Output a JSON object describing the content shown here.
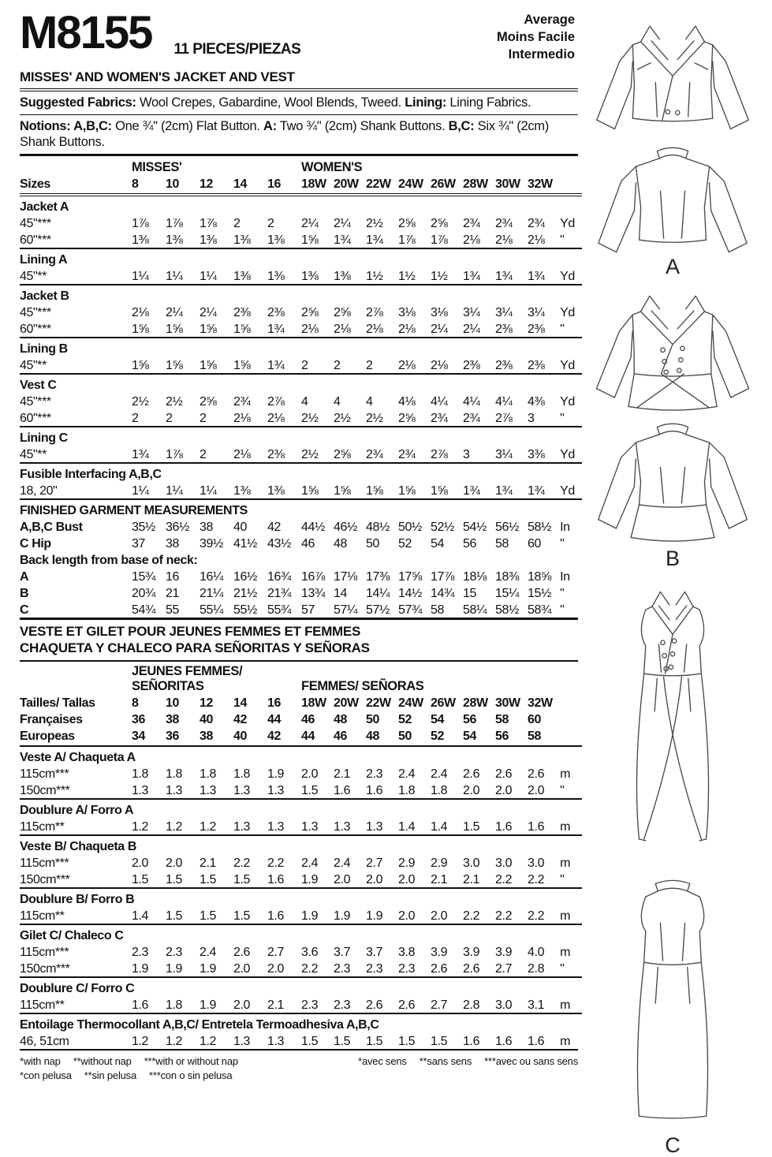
{
  "header": {
    "pattern_number": "M8155",
    "pieces_label": "11 PIECES/PIEZAS",
    "difficulty_lines": [
      "Average",
      "Moins Facile",
      "Intermedio"
    ],
    "title": "MISSES' AND WOMEN'S JACKET AND VEST",
    "fabrics_segments": [
      {
        "b": "Suggested Fabrics:"
      },
      {
        "t": " Wool Crepes, Gabardine, Wool Blends, Tweed. "
      },
      {
        "b": "Lining:"
      },
      {
        "t": " Lining Fabrics."
      }
    ],
    "notions_segments": [
      {
        "b": "Notions: A,B,C:"
      },
      {
        "t": " One ¾\" (2cm) Flat Button. "
      },
      {
        "b": "A:"
      },
      {
        "t": " Two ¾\" (2cm) Shank Buttons. "
      },
      {
        "b": "B,C:"
      },
      {
        "t": " Six ¾\" (2cm) Shank Buttons."
      }
    ]
  },
  "imperial_table": {
    "head_rule": "double",
    "group_headers": [
      {
        "lines": [
          "MISSES'"
        ],
        "span": 5
      },
      {
        "lines": [
          "WOMEN'S"
        ],
        "span": 8
      }
    ],
    "size_rows": [
      {
        "label": "Sizes",
        "values": [
          "8",
          "10",
          "12",
          "14",
          "16",
          "18W",
          "20W",
          "22W",
          "24W",
          "26W",
          "28W",
          "30W",
          "32W"
        ],
        "unit": ""
      }
    ],
    "sections": [
      {
        "title": "Jacket A",
        "rows": [
          {
            "label": "45\"***",
            "values": [
              "1⅞",
              "1⅞",
              "1⅞",
              "2",
              "2",
              "2¼",
              "2¼",
              "2½",
              "2⅝",
              "2⅝",
              "2¾",
              "2¾",
              "2¾"
            ],
            "unit": "Yd"
          },
          {
            "label": "60\"***",
            "values": [
              "1⅜",
              "1⅜",
              "1⅜",
              "1⅜",
              "1⅜",
              "1⅝",
              "1¾",
              "1¾",
              "1⅞",
              "1⅞",
              "2⅛",
              "2⅛",
              "2⅛"
            ],
            "unit": "\""
          }
        ]
      },
      {
        "title": "Lining A",
        "rows": [
          {
            "label": "45\"**",
            "values": [
              "1¼",
              "1¼",
              "1¼",
              "1⅜",
              "1⅜",
              "1⅜",
              "1⅜",
              "1½",
              "1½",
              "1½",
              "1¾",
              "1¾",
              "1¾"
            ],
            "unit": "Yd"
          }
        ]
      },
      {
        "title": "Jacket B",
        "rows": [
          {
            "label": "45\"***",
            "values": [
              "2⅛",
              "2¼",
              "2¼",
              "2⅜",
              "2⅜",
              "2⅝",
              "2⅝",
              "2⅞",
              "3⅛",
              "3⅛",
              "3¼",
              "3¼",
              "3¼"
            ],
            "unit": "Yd"
          },
          {
            "label": "60\"***",
            "values": [
              "1⅝",
              "1⅝",
              "1⅝",
              "1⅝",
              "1¾",
              "2⅛",
              "2⅛",
              "2⅛",
              "2⅛",
              "2¼",
              "2¼",
              "2⅜",
              "2⅜"
            ],
            "unit": "\""
          }
        ]
      },
      {
        "title": "Lining B",
        "rows": [
          {
            "label": "45\"**",
            "values": [
              "1⅝",
              "1⅝",
              "1⅝",
              "1⅝",
              "1¾",
              "2",
              "2",
              "2",
              "2⅛",
              "2⅛",
              "2⅜",
              "2⅜",
              "2⅜"
            ],
            "unit": "Yd"
          }
        ]
      },
      {
        "title": "Vest C",
        "rows": [
          {
            "label": "45\"***",
            "values": [
              "2½",
              "2½",
              "2⅝",
              "2¾",
              "2⅞",
              "4",
              "4",
              "4",
              "4⅛",
              "4¼",
              "4¼",
              "4¼",
              "4⅜"
            ],
            "unit": "Yd"
          },
          {
            "label": "60\"***",
            "values": [
              "2",
              "2",
              "2",
              "2⅛",
              "2⅛",
              "2½",
              "2½",
              "2½",
              "2⅝",
              "2¾",
              "2¾",
              "2⅞",
              "3"
            ],
            "unit": "\""
          }
        ]
      },
      {
        "title": "Lining C",
        "rows": [
          {
            "label": "45\"**",
            "values": [
              "1¾",
              "1⅞",
              "2",
              "2⅛",
              "2⅜",
              "2½",
              "2⅝",
              "2¾",
              "2¾",
              "2⅞",
              "3",
              "3¼",
              "3⅜"
            ],
            "unit": "Yd"
          }
        ]
      },
      {
        "title": "Fusible Interfacing A,B,C",
        "rows": [
          {
            "label": "18, 20\"",
            "values": [
              "1¼",
              "1¼",
              "1¼",
              "1⅜",
              "1⅜",
              "1⅝",
              "1⅝",
              "1⅝",
              "1⅝",
              "1⅝",
              "1¾",
              "1¾",
              "1¾"
            ],
            "unit": "Yd"
          }
        ]
      },
      {
        "title": "FINISHED GARMENT MEASUREMENTS",
        "rows": [
          {
            "label": "A,B,C Bust",
            "bold": 1,
            "values": [
              "35½",
              "36½",
              "38",
              "40",
              "42",
              "44½",
              "46½",
              "48½",
              "50½",
              "52½",
              "54½",
              "56½",
              "58½"
            ],
            "unit": "In"
          },
          {
            "label": "C Hip",
            "bold": 1,
            "values": [
              "37",
              "38",
              "39½",
              "41½",
              "43½",
              "46",
              "48",
              "50",
              "52",
              "54",
              "56",
              "58",
              "60"
            ],
            "unit": "\""
          },
          {
            "label": "Back length from base of neck:",
            "bold": 1,
            "values": [],
            "unit": ""
          },
          {
            "label": "A",
            "bold": 1,
            "values": [
              "15¾",
              "16",
              "16¼",
              "16½",
              "16¾",
              "16⅞",
              "17⅛",
              "17⅜",
              "17⅝",
              "17⅞",
              "18⅛",
              "18⅜",
              "18⅝"
            ],
            "unit": "In"
          },
          {
            "label": "B",
            "bold": 1,
            "values": [
              "20¾",
              "21",
              "21¼",
              "21½",
              "21¾",
              "13¾",
              "14",
              "14¼",
              "14½",
              "14¾",
              "15",
              "15¼",
              "15½"
            ],
            "unit": "\""
          },
          {
            "label": "C",
            "bold": 1,
            "values": [
              "54¾",
              "55",
              "55¼",
              "55½",
              "55¾",
              "57",
              "57¼",
              "57½",
              "57¾",
              "58",
              "58¼",
              "58½",
              "58¾"
            ],
            "unit": "\""
          }
        ]
      }
    ]
  },
  "metric_heading_lines": [
    "VESTE ET GILET POUR JEUNES FEMMES ET FEMMES",
    "CHAQUETA Y CHALECO PARA SEÑORITAS Y SEÑORAS"
  ],
  "metric_table": {
    "head_rule": "solid",
    "group_headers": [
      {
        "lines": [
          "JEUNES FEMMES/",
          "SEÑORITAS"
        ],
        "span": 5
      },
      {
        "lines": [
          "FEMMES/ SEÑORAS"
        ],
        "span": 8
      }
    ],
    "size_rows": [
      {
        "label": "Tailles/ Tallas",
        "values": [
          "8",
          "10",
          "12",
          "14",
          "16",
          "18W",
          "20W",
          "22W",
          "24W",
          "26W",
          "28W",
          "30W",
          "32W"
        ],
        "unit": ""
      },
      {
        "label": "Françaises",
        "values": [
          "36",
          "38",
          "40",
          "42",
          "44",
          "46",
          "48",
          "50",
          "52",
          "54",
          "56",
          "58",
          "60"
        ],
        "unit": ""
      },
      {
        "label": "Europeas",
        "values": [
          "34",
          "36",
          "38",
          "40",
          "42",
          "44",
          "46",
          "48",
          "50",
          "52",
          "54",
          "56",
          "58"
        ],
        "unit": ""
      }
    ],
    "sections": [
      {
        "title": "Veste A/ Chaqueta A",
        "rows": [
          {
            "label": "115cm***",
            "values": [
              "1.8",
              "1.8",
              "1.8",
              "1.8",
              "1.9",
              "2.0",
              "2.1",
              "2.3",
              "2.4",
              "2.4",
              "2.6",
              "2.6",
              "2.6"
            ],
            "unit": "m"
          },
          {
            "label": "150cm***",
            "values": [
              "1.3",
              "1.3",
              "1.3",
              "1.3",
              "1.3",
              "1.5",
              "1.6",
              "1.6",
              "1.8",
              "1.8",
              "2.0",
              "2.0",
              "2.0"
            ],
            "unit": "\""
          }
        ]
      },
      {
        "title": "Doublure A/ Forro A",
        "rows": [
          {
            "label": "115cm**",
            "values": [
              "1.2",
              "1.2",
              "1.2",
              "1.3",
              "1.3",
              "1.3",
              "1.3",
              "1.3",
              "1.4",
              "1.4",
              "1.5",
              "1.6",
              "1.6"
            ],
            "unit": "m"
          }
        ]
      },
      {
        "title": "Veste B/ Chaqueta B",
        "rows": [
          {
            "label": "115cm***",
            "values": [
              "2.0",
              "2.0",
              "2.1",
              "2.2",
              "2.2",
              "2.4",
              "2.4",
              "2.7",
              "2.9",
              "2.9",
              "3.0",
              "3.0",
              "3.0"
            ],
            "unit": "m"
          },
          {
            "label": "150cm***",
            "values": [
              "1.5",
              "1.5",
              "1.5",
              "1.5",
              "1.6",
              "1.9",
              "2.0",
              "2.0",
              "2.0",
              "2.1",
              "2.1",
              "2.2",
              "2.2"
            ],
            "unit": "\""
          }
        ]
      },
      {
        "title": "Doublure B/ Forro B",
        "rows": [
          {
            "label": "115cm**",
            "values": [
              "1.4",
              "1.5",
              "1.5",
              "1.5",
              "1.6",
              "1.9",
              "1.9",
              "1.9",
              "2.0",
              "2.0",
              "2.2",
              "2.2",
              "2.2"
            ],
            "unit": "m"
          }
        ]
      },
      {
        "title": "Gilet C/ Chaleco C",
        "rows": [
          {
            "label": "115cm***",
            "values": [
              "2.3",
              "2.3",
              "2.4",
              "2.6",
              "2.7",
              "3.6",
              "3.7",
              "3.7",
              "3.8",
              "3.9",
              "3.9",
              "3.9",
              "4.0"
            ],
            "unit": "m"
          },
          {
            "label": "150cm***",
            "values": [
              "1.9",
              "1.9",
              "1.9",
              "2.0",
              "2.0",
              "2.2",
              "2.3",
              "2.3",
              "2.3",
              "2.6",
              "2.6",
              "2.7",
              "2.8"
            ],
            "unit": "\""
          }
        ]
      },
      {
        "title": "Doublure C/ Forro C",
        "rows": [
          {
            "label": "115cm**",
            "values": [
              "1.6",
              "1.8",
              "1.9",
              "2.0",
              "2.1",
              "2.3",
              "2.3",
              "2.6",
              "2.6",
              "2.7",
              "2.8",
              "3.0",
              "3.1"
            ],
            "unit": "m"
          }
        ]
      },
      {
        "title": "Entoilage Thermocollant A,B,C/ Entretela Termoadhesiva A,B,C",
        "rows": [
          {
            "label": "46, 51cm",
            "values": [
              "1.2",
              "1.2",
              "1.2",
              "1.3",
              "1.3",
              "1.5",
              "1.5",
              "1.5",
              "1.5",
              "1.5",
              "1.6",
              "1.6",
              "1.6"
            ],
            "unit": "m"
          }
        ]
      }
    ]
  },
  "footnotes": {
    "english": [
      "*with nap",
      "**without nap",
      "***with or without nap"
    ],
    "spanish": [
      "*con pelusa",
      "**sin pelusa",
      "***con o sin pelusa"
    ],
    "french": [
      "*avec sens",
      "**sans sens",
      "***avec ou sans sens"
    ]
  },
  "illustrations": {
    "label_a": "A",
    "label_b": "B",
    "label_c": "C"
  }
}
